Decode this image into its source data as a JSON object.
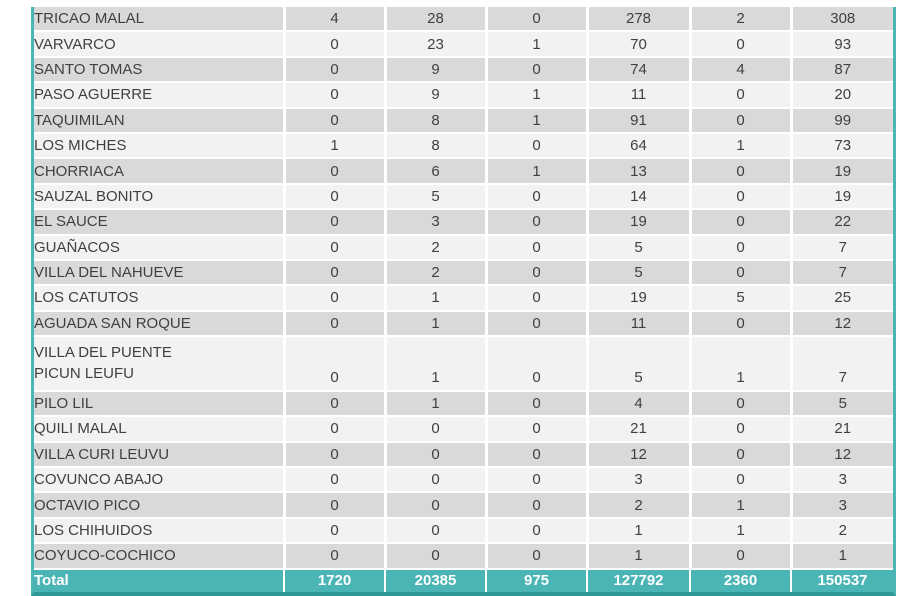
{
  "table": {
    "columns_visible": 7,
    "rows": [
      {
        "name": "TRICAO MALAL",
        "values": [
          "4",
          "28",
          "0",
          "278",
          "2",
          "308"
        ]
      },
      {
        "name": "VARVARCO",
        "values": [
          "0",
          "23",
          "1",
          "70",
          "0",
          "93"
        ]
      },
      {
        "name": "SANTO TOMAS",
        "values": [
          "0",
          "9",
          "0",
          "74",
          "4",
          "87"
        ]
      },
      {
        "name": "PASO AGUERRE",
        "values": [
          "0",
          "9",
          "1",
          "11",
          "0",
          "20"
        ]
      },
      {
        "name": "TAQUIMILAN",
        "values": [
          "0",
          "8",
          "1",
          "91",
          "0",
          "99"
        ]
      },
      {
        "name": "LOS MICHES",
        "values": [
          "1",
          "8",
          "0",
          "64",
          "1",
          "73"
        ]
      },
      {
        "name": "CHORRIACA",
        "values": [
          "0",
          "6",
          "1",
          "13",
          "0",
          "19"
        ]
      },
      {
        "name": "SAUZAL BONITO",
        "values": [
          "0",
          "5",
          "0",
          "14",
          "0",
          "19"
        ]
      },
      {
        "name": "EL SAUCE",
        "values": [
          "0",
          "3",
          "0",
          "19",
          "0",
          "22"
        ]
      },
      {
        "name": "GUAÑACOS",
        "values": [
          "0",
          "2",
          "0",
          "5",
          "0",
          "7"
        ]
      },
      {
        "name": "VILLA DEL NAHUEVE",
        "values": [
          "0",
          "2",
          "0",
          "5",
          "0",
          "7"
        ]
      },
      {
        "name": "LOS CATUTOS",
        "values": [
          "0",
          "1",
          "0",
          "19",
          "5",
          "25"
        ]
      },
      {
        "name": "AGUADA SAN ROQUE",
        "values": [
          "0",
          "1",
          "0",
          "11",
          "0",
          "12"
        ]
      },
      {
        "name": "VILLA DEL PUENTE\nPICUN LEUFU",
        "tall": true,
        "values": [
          "0",
          "1",
          "0",
          "5",
          "1",
          "7"
        ]
      },
      {
        "name": "PILO LIL",
        "values": [
          "0",
          "1",
          "0",
          "4",
          "0",
          "5"
        ]
      },
      {
        "name": "QUILI MALAL",
        "values": [
          "0",
          "0",
          "0",
          "21",
          "0",
          "21"
        ]
      },
      {
        "name": "VILLA CURI LEUVU",
        "values": [
          "0",
          "0",
          "0",
          "12",
          "0",
          "12"
        ]
      },
      {
        "name": "COVUNCO ABAJO",
        "values": [
          "0",
          "0",
          "0",
          "3",
          "0",
          "3"
        ]
      },
      {
        "name": "OCTAVIO PICO",
        "values": [
          "0",
          "0",
          "0",
          "2",
          "1",
          "3"
        ]
      },
      {
        "name": "LOS CHIHUIDOS",
        "values": [
          "0",
          "0",
          "0",
          "1",
          "1",
          "2"
        ]
      },
      {
        "name": "COYUCO-COCHICO",
        "values": [
          "0",
          "0",
          "0",
          "1",
          "0",
          "1"
        ]
      }
    ],
    "total": {
      "label": "Total",
      "values": [
        "1720",
        "20385",
        "975",
        "127792",
        "2360",
        "150537"
      ]
    },
    "colors": {
      "accent_teal": "#4bb5b6",
      "accent_teal_dark": "#2d9999",
      "row_gray": "#d9d9d9",
      "row_light": "#f2f2f2",
      "text": "#404040"
    }
  }
}
